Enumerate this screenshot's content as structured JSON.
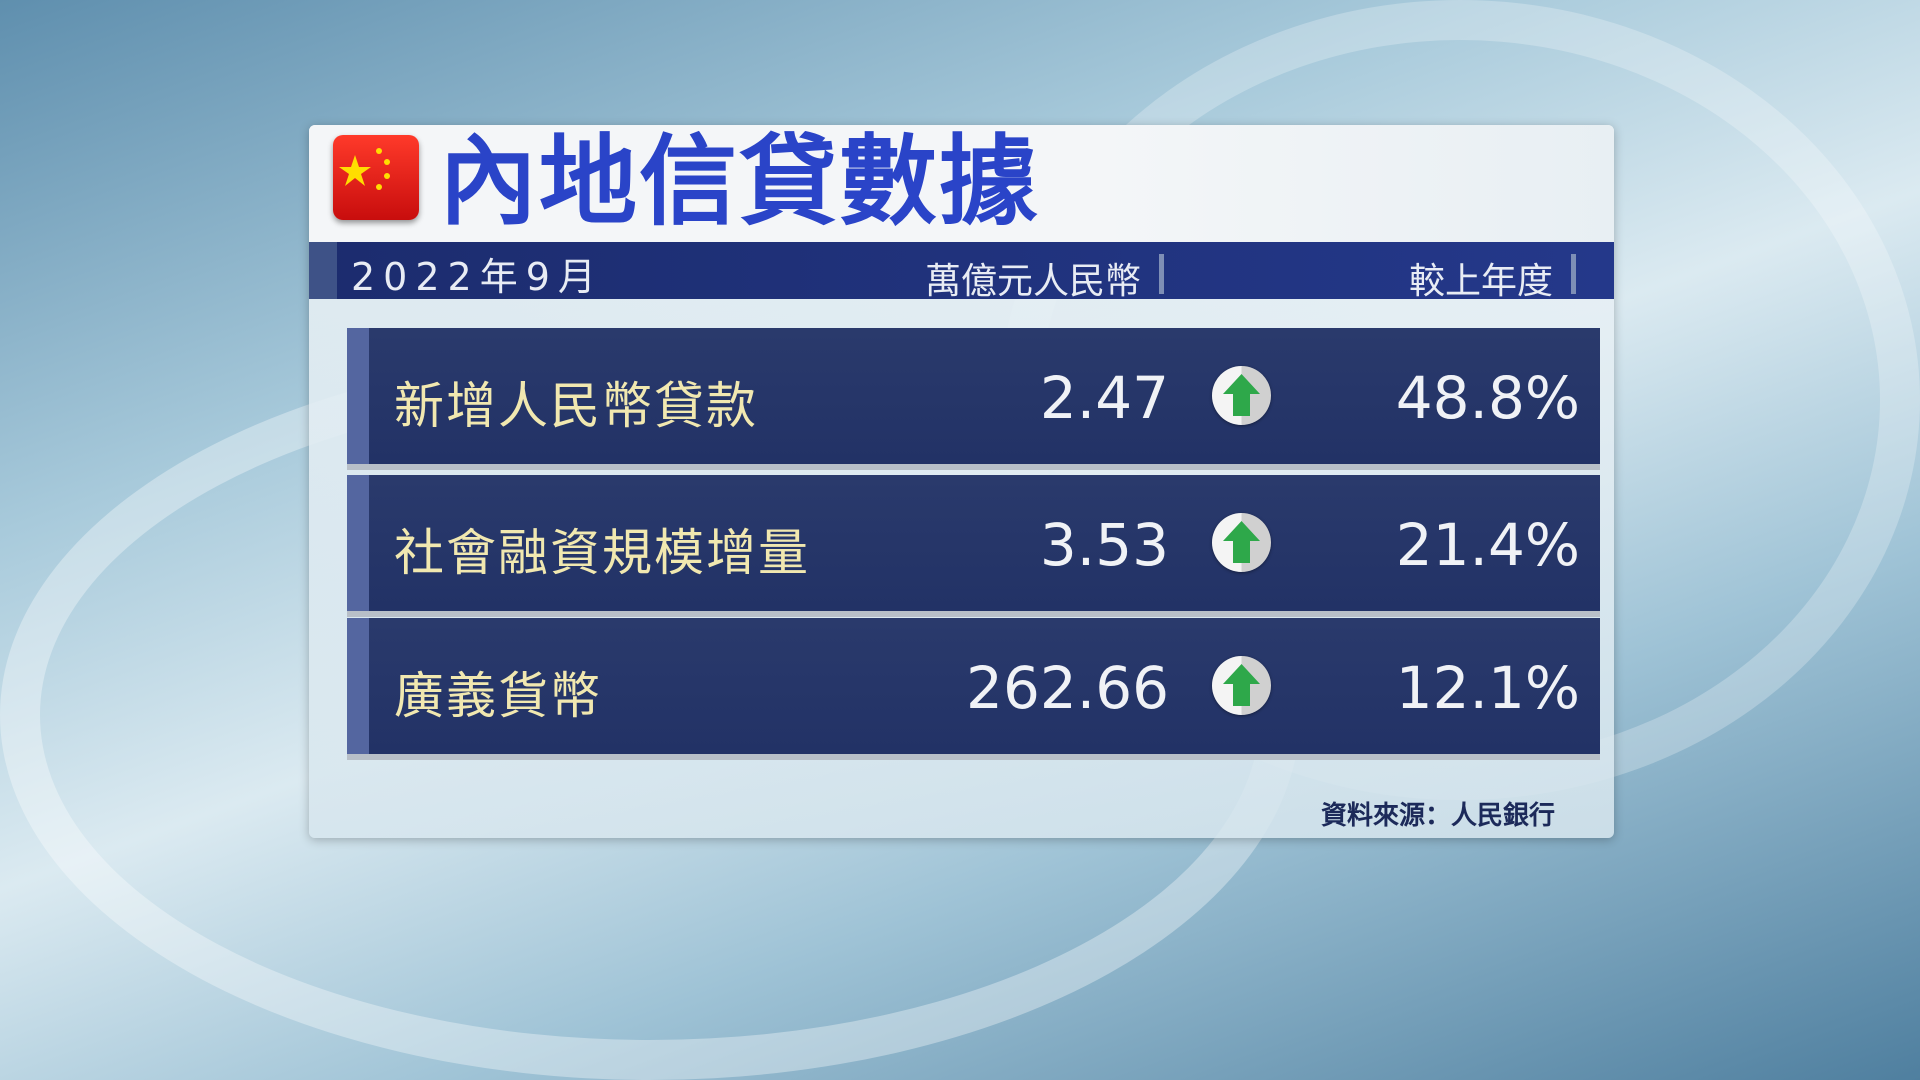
{
  "title": "內地信貸數據",
  "header": {
    "date": "2022年9月",
    "unit": "萬億元人民幣",
    "change_label": "較上年度"
  },
  "rows": [
    {
      "label": "新增人民幣貸款",
      "value": "2.47",
      "trend_icon": "up-arrow-icon",
      "change": "48.8%"
    },
    {
      "label": "社會融資規模增量",
      "value": "3.53",
      "trend_icon": "up-arrow-icon",
      "change": "21.4%"
    },
    {
      "label": "廣義貨幣",
      "value": "262.66",
      "trend_icon": "up-arrow-icon",
      "change": "12.1%"
    }
  ],
  "source": "資料來源：人民銀行",
  "colors": {
    "title": "#2a44c8",
    "header_bar": "#1c2c6e",
    "row_bg": "#26366a",
    "label": "#f1e8b0",
    "arrow": "#2ea84a"
  }
}
